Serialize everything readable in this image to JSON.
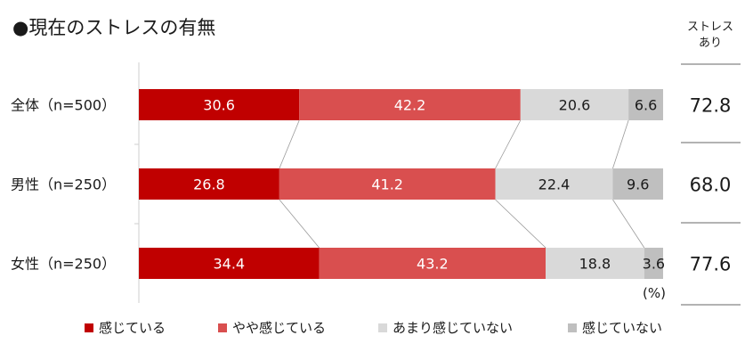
{
  "chart_data": {
    "type": "bar",
    "orientation": "horizontal",
    "stacked": true,
    "title": "●現在のストレスの有無",
    "categories": [
      "全体（n=500）",
      "男性（n=250）",
      "女性（n=250）"
    ],
    "series": [
      {
        "name": "感じている",
        "color": "#c00000",
        "values": [
          30.6,
          26.8,
          34.4
        ]
      },
      {
        "name": "やや感じている",
        "color": "#d94f4f",
        "values": [
          42.2,
          41.2,
          43.2
        ]
      },
      {
        "name": "あまり感じていない",
        "color": "#d9d9d9",
        "values": [
          20.6,
          22.4,
          18.8
        ]
      },
      {
        "name": "感じていない",
        "color": "#bfbfbf",
        "values": [
          6.6,
          9.6,
          3.6
        ]
      }
    ],
    "xlim": [
      0,
      100
    ],
    "unit_label": "(%)",
    "legend_position": "bottom",
    "side_column": {
      "header": [
        "ストレス",
        "あり"
      ],
      "values": [
        "72.8",
        "68.0",
        "77.6"
      ]
    }
  }
}
